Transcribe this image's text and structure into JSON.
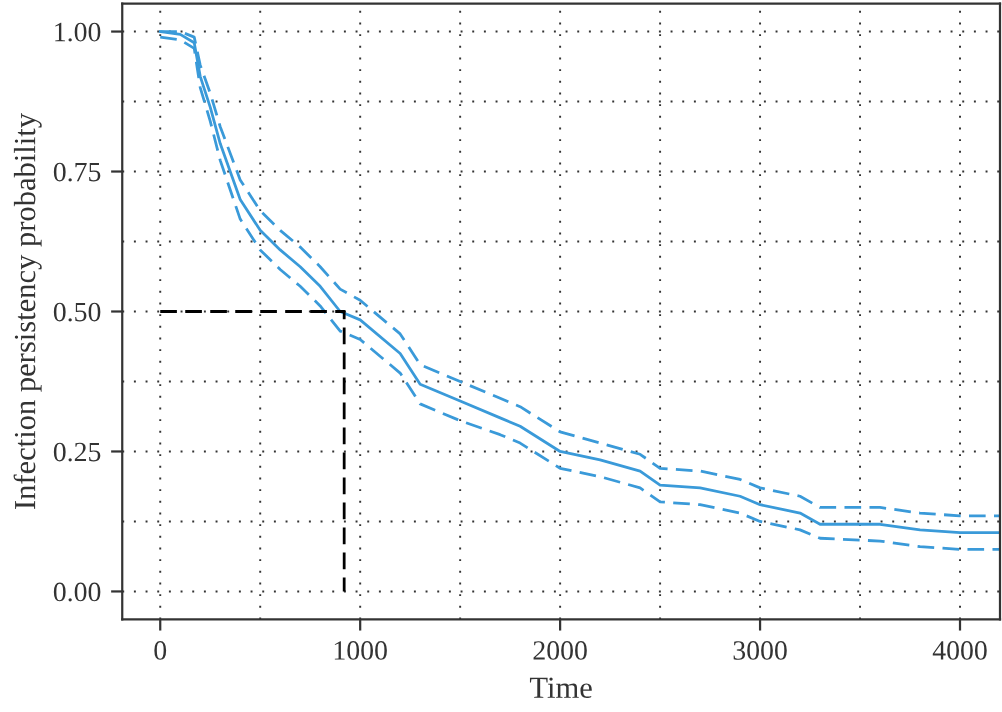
{
  "chart_data": {
    "type": "line",
    "xlabel": "Time",
    "ylabel": "Infection persistency probability",
    "xlim": [
      -190,
      4200
    ],
    "ylim": [
      -0.05,
      1.05
    ],
    "xticks": [
      0,
      1000,
      2000,
      3000,
      4000
    ],
    "yticks": [
      {
        "value": 0,
        "label": "0.00"
      },
      {
        "value": 0.25,
        "label": "0.25"
      },
      {
        "value": 0.5,
        "label": "0.50"
      },
      {
        "value": 0.75,
        "label": "0.75"
      },
      {
        "value": 1,
        "label": "1.00"
      }
    ],
    "grid": true,
    "marker": "none",
    "series": [
      {
        "color": "#3a9ad9",
        "line_style": "solid",
        "x": [
          0,
          100,
          170,
          200,
          250,
          300,
          400,
          500,
          600,
          700,
          800,
          900,
          1000,
          1200,
          1300,
          1500,
          1700,
          1800,
          2000,
          2200,
          2400,
          2500,
          2700,
          2900,
          3000,
          3200,
          3300,
          3600,
          3800,
          4000,
          4200
        ],
        "values": [
          1.0,
          0.995,
          0.98,
          0.92,
          0.865,
          0.8,
          0.7,
          0.645,
          0.61,
          0.58,
          0.545,
          0.5,
          0.485,
          0.425,
          0.37,
          0.34,
          0.31,
          0.295,
          0.25,
          0.235,
          0.215,
          0.19,
          0.185,
          0.17,
          0.155,
          0.14,
          0.12,
          0.12,
          0.11,
          0.105,
          0.105
        ]
      },
      {
        "color": "#3a9ad9",
        "line_style": "dashed",
        "x": [
          0,
          100,
          170,
          200,
          250,
          300,
          400,
          500,
          600,
          700,
          800,
          900,
          1000,
          1200,
          1300,
          1500,
          1700,
          1800,
          2000,
          2200,
          2400,
          2500,
          2700,
          2900,
          3000,
          3200,
          3300,
          3600,
          3800,
          4000,
          4200
        ],
        "values": [
          0.99,
          0.985,
          0.97,
          0.9,
          0.84,
          0.77,
          0.665,
          0.61,
          0.575,
          0.545,
          0.51,
          0.465,
          0.45,
          0.39,
          0.335,
          0.305,
          0.28,
          0.265,
          0.22,
          0.205,
          0.185,
          0.16,
          0.155,
          0.14,
          0.125,
          0.11,
          0.095,
          0.09,
          0.08,
          0.075,
          0.075
        ]
      },
      {
        "color": "#3a9ad9",
        "line_style": "dashed",
        "x": [
          0,
          100,
          170,
          200,
          250,
          300,
          400,
          500,
          600,
          700,
          800,
          900,
          1000,
          1200,
          1300,
          1500,
          1700,
          1800,
          2000,
          2200,
          2400,
          2500,
          2700,
          2900,
          3000,
          3200,
          3300,
          3600,
          3800,
          4000,
          4200
        ],
        "values": [
          1.0,
          1.0,
          0.99,
          0.94,
          0.89,
          0.83,
          0.735,
          0.68,
          0.645,
          0.615,
          0.58,
          0.54,
          0.52,
          0.46,
          0.405,
          0.375,
          0.345,
          0.33,
          0.285,
          0.265,
          0.245,
          0.22,
          0.215,
          0.2,
          0.185,
          0.17,
          0.15,
          0.15,
          0.14,
          0.135,
          0.135
        ]
      },
      {
        "color": "#000000",
        "line_style": "dashed",
        "x": [
          0,
          920,
          920
        ],
        "values": [
          0.5,
          0.5,
          0.0
        ]
      }
    ]
  }
}
